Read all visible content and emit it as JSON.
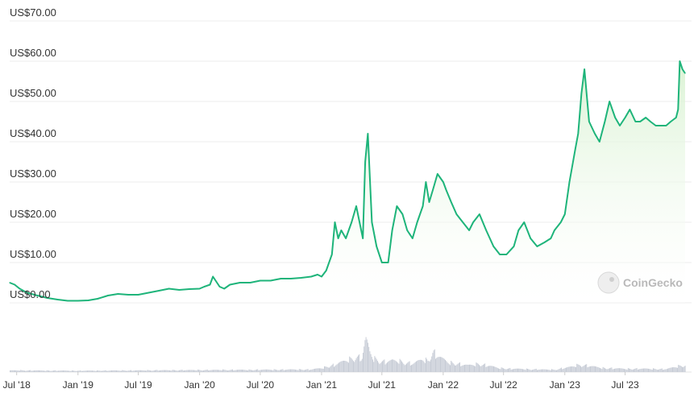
{
  "watermark": "CoinGecko",
  "colors": {
    "line": "#1eb47a",
    "area_top": "#d9f2d2",
    "volume": "#c7ccd6",
    "grid": "#eeeeee"
  },
  "chart_data": {
    "type": "area",
    "title": "",
    "xlabel": "",
    "ylabel": "",
    "ylim": [
      0,
      70
    ],
    "grid": true,
    "y_tick_labels": [
      "US$0.00",
      "US$10.00",
      "US$20.00",
      "US$30.00",
      "US$40.00",
      "US$50.00",
      "US$60.00",
      "US$70.00"
    ],
    "y_ticks": [
      0,
      10,
      20,
      30,
      40,
      50,
      60,
      70
    ],
    "x_tick_labels": [
      "Jul '18",
      "Jan '19",
      "Jul '19",
      "Jan '20",
      "Jul '20",
      "Jan '21",
      "Jul '21",
      "Jan '22",
      "Jul '22",
      "Jan '23",
      "Jul '23"
    ],
    "x_ticks": [
      "2018-07-01",
      "2019-01-01",
      "2019-07-01",
      "2020-01-01",
      "2020-07-01",
      "2021-01-01",
      "2021-07-01",
      "2022-01-01",
      "2022-07-01",
      "2023-01-01",
      "2023-07-01"
    ],
    "x_range": [
      "2018-06-10",
      "2023-12-28"
    ],
    "series": [
      {
        "x": [
          "2018-06-10",
          "2018-06-25",
          "2018-07-10",
          "2018-08-01",
          "2018-09-01",
          "2018-10-01",
          "2018-11-01",
          "2018-12-01",
          "2019-01-01",
          "2019-02-01",
          "2019-03-01",
          "2019-04-01",
          "2019-05-01",
          "2019-06-01",
          "2019-07-01",
          "2019-08-01",
          "2019-09-01",
          "2019-10-01",
          "2019-11-01",
          "2019-12-01",
          "2020-01-01",
          "2020-01-15",
          "2020-02-01",
          "2020-02-10",
          "2020-03-01",
          "2020-03-15",
          "2020-04-01",
          "2020-05-01",
          "2020-06-01",
          "2020-07-01",
          "2020-08-01",
          "2020-09-01",
          "2020-10-01",
          "2020-11-01",
          "2020-12-01",
          "2020-12-20",
          "2021-01-01",
          "2021-01-15",
          "2021-02-01",
          "2021-02-10",
          "2021-02-20",
          "2021-03-01",
          "2021-03-15",
          "2021-04-01",
          "2021-04-15",
          "2021-04-25",
          "2021-05-05",
          "2021-05-12",
          "2021-05-20",
          "2021-06-01",
          "2021-06-15",
          "2021-07-01",
          "2021-07-20",
          "2021-08-01",
          "2021-08-15",
          "2021-09-01",
          "2021-09-15",
          "2021-10-01",
          "2021-10-15",
          "2021-11-01",
          "2021-11-10",
          "2021-11-20",
          "2021-12-01",
          "2021-12-15",
          "2022-01-01",
          "2022-01-10",
          "2022-01-25",
          "2022-02-10",
          "2022-03-01",
          "2022-03-20",
          "2022-04-01",
          "2022-04-20",
          "2022-05-10",
          "2022-06-01",
          "2022-06-20",
          "2022-07-10",
          "2022-08-01",
          "2022-08-15",
          "2022-09-01",
          "2022-09-20",
          "2022-10-10",
          "2022-11-01",
          "2022-11-20",
          "2022-12-01",
          "2022-12-20",
          "2023-01-01",
          "2023-01-15",
          "2023-02-01",
          "2023-02-10",
          "2023-02-20",
          "2023-03-01",
          "2023-03-15",
          "2023-04-01",
          "2023-04-15",
          "2023-05-01",
          "2023-05-15",
          "2023-06-01",
          "2023-06-15",
          "2023-07-01",
          "2023-07-15",
          "2023-08-01",
          "2023-08-15",
          "2023-09-01",
          "2023-09-15",
          "2023-10-01",
          "2023-10-15",
          "2023-11-01",
          "2023-11-15",
          "2023-12-01",
          "2023-12-07",
          "2023-12-12",
          "2023-12-20",
          "2023-12-28"
        ],
        "values": [
          5,
          4.5,
          3.5,
          2.5,
          1.8,
          1.2,
          0.8,
          0.5,
          0.5,
          0.6,
          1,
          1.8,
          2.2,
          2,
          2,
          2.5,
          3,
          3.5,
          3.2,
          3.4,
          3.5,
          4,
          4.5,
          6.5,
          4,
          3.5,
          4.5,
          5,
          5,
          5.5,
          5.5,
          6,
          6,
          6.2,
          6.5,
          7,
          6.5,
          8,
          12,
          20,
          16,
          18,
          16,
          20,
          24,
          20,
          16,
          35,
          42,
          20,
          14,
          10,
          10,
          18,
          24,
          22,
          18,
          16,
          20,
          24,
          30,
          25,
          28,
          32,
          30,
          28,
          25,
          22,
          20,
          18,
          20,
          22,
          18,
          14,
          12,
          12,
          14,
          18,
          20,
          16,
          14,
          15,
          16,
          18,
          20,
          22,
          30,
          38,
          42,
          52,
          58,
          45,
          42,
          40,
          45,
          50,
          46,
          44,
          46,
          48,
          45,
          45,
          46,
          45,
          44,
          44,
          44,
          45,
          46,
          48,
          60,
          58,
          57
        ]
      }
    ],
    "volume_series": {
      "x": [
        "2018-07-01",
        "2019-01-01",
        "2019-07-01",
        "2020-01-01",
        "2020-07-01",
        "2020-12-01",
        "2021-01-01",
        "2021-02-15",
        "2021-03-15",
        "2021-04-15",
        "2021-05-01",
        "2021-05-12",
        "2021-05-18",
        "2021-05-25",
        "2021-06-05",
        "2021-06-20",
        "2021-07-10",
        "2021-08-01",
        "2021-09-01",
        "2021-10-01",
        "2021-11-01",
        "2021-11-15",
        "2021-12-01",
        "2021-12-20",
        "2022-01-15",
        "2022-02-15",
        "2022-03-15",
        "2022-04-15",
        "2022-05-15",
        "2022-06-15",
        "2022-08-01",
        "2022-10-01",
        "2022-12-01",
        "2023-01-15",
        "2023-02-15",
        "2023-03-15",
        "2023-05-01",
        "2023-07-01",
        "2023-09-01",
        "2023-11-01",
        "2023-12-15"
      ],
      "values": [
        0.05,
        0.04,
        0.05,
        0.06,
        0.07,
        0.08,
        0.12,
        0.25,
        0.35,
        0.45,
        0.4,
        1.0,
        0.85,
        0.6,
        0.4,
        0.35,
        0.3,
        0.35,
        0.3,
        0.25,
        0.4,
        0.35,
        0.6,
        0.45,
        0.3,
        0.25,
        0.2,
        0.25,
        0.2,
        0.12,
        0.1,
        0.08,
        0.07,
        0.15,
        0.22,
        0.18,
        0.12,
        0.1,
        0.1,
        0.09,
        0.2
      ]
    }
  }
}
